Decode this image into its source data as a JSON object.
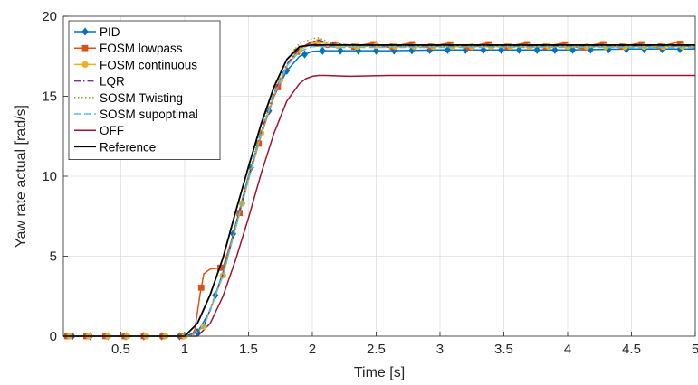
{
  "chart_data": {
    "type": "line",
    "title": "",
    "xlabel": "Time [s]",
    "ylabel": "Yaw rate actual [rad/s]",
    "xlim": [
      0.05,
      5
    ],
    "ylim": [
      0,
      20
    ],
    "xticks": [
      0.5,
      1,
      1.5,
      2,
      2.5,
      3,
      3.5,
      4,
      4.5,
      5
    ],
    "xtick_labels": [
      "0.5",
      "1",
      "1.5",
      "2",
      "2.5",
      "3",
      "3.5",
      "4",
      "4.5",
      "5"
    ],
    "yticks": [
      0,
      5,
      10,
      15,
      20
    ],
    "ytick_labels": [
      "0",
      "5",
      "10",
      "15",
      "20"
    ],
    "grid": true,
    "legend_position": "top-left",
    "series": [
      {
        "name": "PID",
        "color": "#0072BD",
        "marker": "diamond",
        "style": "solid",
        "x": [
          0.05,
          1.0,
          1.1,
          1.2,
          1.3,
          1.4,
          1.5,
          1.6,
          1.7,
          1.8,
          1.9,
          2.0,
          2.1,
          2.3,
          2.6,
          3.0,
          3.5,
          4.0,
          4.5,
          5.0
        ],
        "y": [
          0,
          0,
          0.25,
          1.6,
          4.0,
          7.0,
          10.0,
          12.7,
          15.0,
          16.6,
          17.5,
          17.8,
          17.85,
          17.85,
          17.85,
          17.9,
          17.9,
          17.9,
          17.95,
          17.95
        ]
      },
      {
        "name": "FOSM lowpass",
        "color": "#D95319",
        "marker": "square",
        "style": "solid",
        "x": [
          0.05,
          1.05,
          1.08,
          1.12,
          1.15,
          1.2,
          1.3,
          1.4,
          1.5,
          1.6,
          1.7,
          1.8,
          1.9,
          2.0,
          2.05,
          2.12,
          2.2,
          2.3,
          2.45,
          2.6,
          2.75,
          2.9,
          3.05,
          3.2,
          3.35,
          3.5,
          3.65,
          3.8,
          3.95,
          4.1,
          4.25,
          4.4,
          4.55,
          4.7,
          4.85,
          5.0
        ],
        "y": [
          0,
          0,
          0.4,
          2.6,
          3.9,
          4.2,
          4.3,
          6.8,
          9.8,
          12.6,
          15.0,
          16.9,
          18.0,
          18.4,
          18.2,
          18.05,
          18.3,
          18.05,
          18.3,
          18.05,
          18.3,
          18.05,
          18.3,
          18.0,
          18.3,
          18.05,
          18.3,
          18.05,
          18.3,
          18.0,
          18.3,
          18.05,
          18.3,
          18.05,
          18.35,
          18.0
        ]
      },
      {
        "name": "FOSM continuous",
        "color": "#EDB120",
        "marker": "circle",
        "style": "solid",
        "x": [
          0.05,
          1.05,
          1.15,
          1.3,
          1.4,
          1.5,
          1.6,
          1.7,
          1.8,
          1.9,
          2.0,
          2.05,
          2.1,
          2.2,
          2.35,
          2.5,
          2.7,
          3.0,
          3.5,
          4.0,
          4.5,
          5.0
        ],
        "y": [
          0,
          0,
          0.6,
          3.8,
          6.8,
          9.8,
          12.7,
          15.1,
          16.9,
          17.9,
          18.3,
          18.4,
          18.3,
          18.15,
          18.1,
          18.15,
          18.1,
          18.1,
          18.1,
          18.1,
          18.1,
          18.1
        ]
      },
      {
        "name": "LQR",
        "color": "#7E2F8E",
        "marker": "none",
        "style": "dashdot",
        "x": [
          0.05,
          1.05,
          1.15,
          1.3,
          1.4,
          1.5,
          1.6,
          1.7,
          1.8,
          1.9,
          2.0,
          2.05,
          2.15,
          2.3,
          2.5,
          3.0,
          3.5,
          4.0,
          4.5,
          5.0
        ],
        "y": [
          0,
          0,
          0.6,
          3.9,
          6.9,
          9.9,
          12.8,
          15.2,
          17.0,
          18.0,
          18.4,
          18.5,
          18.3,
          18.2,
          18.15,
          18.15,
          18.15,
          18.15,
          18.15,
          18.15
        ]
      },
      {
        "name": "SOSM Twisting",
        "color": "#77AC30",
        "marker": "none",
        "style": "dotted",
        "x": [
          0.05,
          1.05,
          1.15,
          1.3,
          1.4,
          1.5,
          1.6,
          1.7,
          1.8,
          1.9,
          2.0,
          2.05,
          2.12,
          2.2,
          2.35,
          2.5,
          2.7,
          3.0,
          3.5,
          4.0,
          4.5,
          5.0
        ],
        "y": [
          0,
          0,
          0.6,
          3.9,
          7.0,
          10.1,
          13.0,
          15.5,
          17.3,
          18.3,
          18.6,
          18.65,
          18.4,
          18.2,
          18.1,
          18.15,
          18.1,
          18.1,
          18.1,
          18.1,
          18.1,
          18.1
        ]
      },
      {
        "name": "SOSM supoptimal",
        "color": "#4DBEEE",
        "marker": "none",
        "style": "dashed",
        "x": [
          0.05,
          1.05,
          1.15,
          1.3,
          1.4,
          1.5,
          1.6,
          1.7,
          1.8,
          1.9,
          2.0,
          2.1,
          2.2,
          2.4,
          3.0,
          3.5,
          4.0,
          4.5,
          5.0
        ],
        "y": [
          0,
          0,
          0.6,
          3.8,
          6.8,
          9.8,
          12.7,
          15.1,
          16.9,
          17.8,
          18.1,
          18.1,
          18.05,
          18.05,
          18.05,
          18.05,
          18.05,
          18.05,
          18.05
        ]
      },
      {
        "name": "OFF",
        "color": "#A2142F",
        "marker": "none",
        "style": "solid",
        "x": [
          0.05,
          1.1,
          1.2,
          1.3,
          1.4,
          1.5,
          1.6,
          1.7,
          1.8,
          1.9,
          1.95,
          2.0,
          2.05,
          2.1,
          2.3,
          2.6,
          3.0,
          3.5,
          4.0,
          4.5,
          5.0
        ],
        "y": [
          0,
          0,
          0.8,
          2.5,
          4.8,
          7.4,
          10.2,
          12.7,
          14.7,
          15.8,
          16.1,
          16.25,
          16.3,
          16.3,
          16.25,
          16.3,
          16.3,
          16.3,
          16.3,
          16.3,
          16.3
        ]
      },
      {
        "name": "Reference",
        "color": "#000000",
        "marker": "none",
        "style": "solid",
        "x": [
          0.05,
          1.0,
          1.1,
          1.2,
          1.3,
          1.4,
          1.5,
          1.6,
          1.7,
          1.8,
          1.9,
          2.0,
          2.05,
          2.1,
          5.0
        ],
        "y": [
          0,
          0,
          0.8,
          2.6,
          4.9,
          7.8,
          10.6,
          13.3,
          15.6,
          17.3,
          18.1,
          18.2,
          18.2,
          18.2,
          18.2
        ]
      }
    ]
  }
}
